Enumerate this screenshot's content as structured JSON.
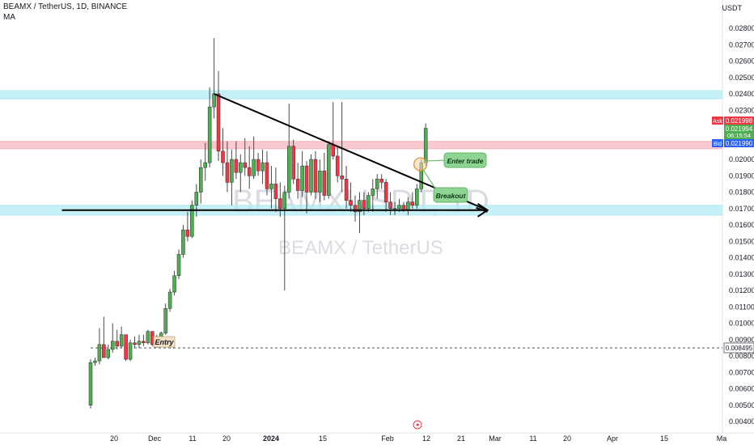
{
  "header": {
    "symbol_line": "BEAMX / TetherUS, 1D, BINANCE",
    "indicator": "MA",
    "currency": "USDT"
  },
  "watermark": {
    "big": "BEAMXUSDT, 1D",
    "small": "BEAMX / TetherUS"
  },
  "colors": {
    "up": "#4caf50",
    "down": "#f23645",
    "support_zone": "#b2ebf2",
    "resistance_zone": "#f5b7bd",
    "ask_badge": "#f23645",
    "last_badge": "#4caf50",
    "bid_badge": "#2962ff",
    "entry_badge": "#f2e1c9",
    "callout": "#8fd494"
  },
  "chart_data": {
    "type": "candlestick",
    "interval": "1D",
    "ylim": [
      0.0035,
      0.029
    ],
    "y_ticks": [
      "0.004000",
      "0.005000",
      "0.006000",
      "0.007000",
      "0.008000",
      "0.009000",
      "0.010000",
      "0.011000",
      "0.012000",
      "0.013000",
      "0.014000",
      "0.015000",
      "0.016000",
      "0.017000",
      "0.018000",
      "0.019000",
      "0.020000",
      "0.021000",
      "0.022000",
      "0.023000",
      "0.024000",
      "0.025000",
      "0.026000",
      "0.027000",
      "0.028000"
    ],
    "x_ticks": [
      "20",
      "Dec",
      "11",
      "20",
      "2024",
      "15",
      "Feb",
      "12",
      "21",
      "Mar",
      "11",
      "20",
      "Apr",
      "15",
      "Ma"
    ],
    "candles": [
      [
        0.005,
        0.0078,
        0.0048,
        0.0076
      ],
      [
        0.0076,
        0.0079,
        0.0074,
        0.0077
      ],
      [
        0.0077,
        0.0097,
        0.0075,
        0.0087
      ],
      [
        0.0087,
        0.0104,
        0.0079,
        0.0079
      ],
      [
        0.0079,
        0.0087,
        0.0078,
        0.0084
      ],
      [
        0.0084,
        0.01,
        0.0082,
        0.0089
      ],
      [
        0.0089,
        0.0096,
        0.0084,
        0.0086
      ],
      [
        0.0086,
        0.0098,
        0.0085,
        0.0093
      ],
      [
        0.0093,
        0.0093,
        0.0077,
        0.0078
      ],
      [
        0.0078,
        0.009,
        0.0077,
        0.0088
      ],
      [
        0.0088,
        0.0092,
        0.0085,
        0.0087
      ],
      [
        0.0087,
        0.0093,
        0.0085,
        0.0089
      ],
      [
        0.0089,
        0.0093,
        0.0086,
        0.0088
      ],
      [
        0.0088,
        0.0096,
        0.0087,
        0.0095
      ],
      [
        0.0095,
        0.0095,
        0.0086,
        0.0087
      ],
      [
        0.0087,
        0.0093,
        0.0085,
        0.0092
      ],
      [
        0.0092,
        0.0095,
        0.0088,
        0.0094
      ],
      [
        0.0094,
        0.0112,
        0.0093,
        0.0109
      ],
      [
        0.0109,
        0.0121,
        0.0107,
        0.0119
      ],
      [
        0.0119,
        0.0132,
        0.0117,
        0.0129
      ],
      [
        0.0129,
        0.0145,
        0.0127,
        0.0142
      ],
      [
        0.0142,
        0.016,
        0.014,
        0.0157
      ],
      [
        0.0157,
        0.0168,
        0.015,
        0.0153
      ],
      [
        0.0153,
        0.0175,
        0.0152,
        0.0172
      ],
      [
        0.0172,
        0.0185,
        0.0165,
        0.018
      ],
      [
        0.018,
        0.02,
        0.0173,
        0.0195
      ],
      [
        0.0195,
        0.021,
        0.0187,
        0.0198
      ],
      [
        0.0198,
        0.0244,
        0.0195,
        0.0232
      ],
      [
        0.0232,
        0.0274,
        0.0225,
        0.024
      ],
      [
        0.024,
        0.0254,
        0.0199,
        0.0205
      ],
      [
        0.0205,
        0.0219,
        0.019,
        0.0198
      ],
      [
        0.0198,
        0.0211,
        0.018,
        0.0186
      ],
      [
        0.0186,
        0.0206,
        0.0172,
        0.02
      ],
      [
        0.02,
        0.0211,
        0.0188,
        0.0192
      ],
      [
        0.0192,
        0.0203,
        0.018,
        0.0198
      ],
      [
        0.0198,
        0.0213,
        0.019,
        0.0195
      ],
      [
        0.0195,
        0.0208,
        0.0182,
        0.019
      ],
      [
        0.019,
        0.0214,
        0.0188,
        0.02
      ],
      [
        0.02,
        0.0204,
        0.019,
        0.0193
      ],
      [
        0.0193,
        0.0206,
        0.0185,
        0.0198
      ],
      [
        0.0198,
        0.0205,
        0.0178,
        0.0182
      ],
      [
        0.0182,
        0.0196,
        0.017,
        0.0185
      ],
      [
        0.0185,
        0.0195,
        0.0168,
        0.0176
      ],
      [
        0.0176,
        0.0186,
        0.0165,
        0.017
      ],
      [
        0.017,
        0.0184,
        0.012,
        0.018
      ],
      [
        0.018,
        0.0234,
        0.0176,
        0.0208
      ],
      [
        0.0208,
        0.0212,
        0.0185,
        0.0188
      ],
      [
        0.0188,
        0.0198,
        0.0176,
        0.0181
      ],
      [
        0.0181,
        0.0205,
        0.0177,
        0.0196
      ],
      [
        0.0196,
        0.0199,
        0.0167,
        0.018
      ],
      [
        0.018,
        0.0203,
        0.0178,
        0.02
      ],
      [
        0.02,
        0.0205,
        0.0176,
        0.018
      ],
      [
        0.018,
        0.02,
        0.0174,
        0.0193
      ],
      [
        0.0193,
        0.0204,
        0.0175,
        0.0178
      ],
      [
        0.0178,
        0.0211,
        0.0176,
        0.0209
      ],
      [
        0.0209,
        0.0235,
        0.02,
        0.0202
      ],
      [
        0.0202,
        0.0208,
        0.0186,
        0.019
      ],
      [
        0.019,
        0.0235,
        0.018,
        0.0188
      ],
      [
        0.0188,
        0.0196,
        0.017,
        0.0175
      ],
      [
        0.0175,
        0.0186,
        0.0168,
        0.0172
      ],
      [
        0.0172,
        0.0178,
        0.0162,
        0.0168
      ],
      [
        0.0168,
        0.018,
        0.0155,
        0.0175
      ],
      [
        0.0175,
        0.018,
        0.0166,
        0.017
      ],
      [
        0.017,
        0.018,
        0.0168,
        0.0178
      ],
      [
        0.0178,
        0.0188,
        0.0168,
        0.0182
      ],
      [
        0.0182,
        0.0191,
        0.0176,
        0.0188
      ],
      [
        0.0188,
        0.0191,
        0.0182,
        0.0186
      ],
      [
        0.0186,
        0.0188,
        0.0168,
        0.0174
      ],
      [
        0.0174,
        0.018,
        0.0166,
        0.017
      ],
      [
        0.017,
        0.0174,
        0.0166,
        0.017
      ],
      [
        0.017,
        0.0176,
        0.0168,
        0.0172
      ],
      [
        0.0172,
        0.0174,
        0.0168,
        0.0169
      ],
      [
        0.0169,
        0.0177,
        0.0166,
        0.0174
      ],
      [
        0.0174,
        0.018,
        0.017,
        0.0172
      ],
      [
        0.0172,
        0.0185,
        0.017,
        0.0182
      ],
      [
        0.0182,
        0.02,
        0.018,
        0.0198
      ],
      [
        0.0198,
        0.0222,
        0.0196,
        0.0219
      ]
    ],
    "zones": [
      {
        "name": "resistance-top",
        "from": 0.0237,
        "to": 0.0242,
        "color": "support_zone"
      },
      {
        "name": "resistance-mid",
        "from": 0.02065,
        "to": 0.0211,
        "color": "resistance_zone"
      },
      {
        "name": "support",
        "from": 0.0166,
        "to": 0.0172,
        "color": "support_zone"
      }
    ],
    "trendlines": [
      {
        "name": "descending-trendline",
        "from": {
          "i": 28,
          "y": 0.024
        },
        "to": {
          "i": 90,
          "y": 0.0169
        }
      },
      {
        "name": "horizontal-support-line",
        "from": {
          "i": -6.5,
          "y": 0.0169
        },
        "to": {
          "i": 90,
          "y": 0.0169
        }
      }
    ],
    "entry": {
      "label": "Entry",
      "price": "0.008495",
      "value": 0.008495
    },
    "annotations": [
      {
        "name": "enter-trade",
        "text": "Enter trade"
      },
      {
        "name": "breakout",
        "text": "Breakout"
      }
    ],
    "price_badges": {
      "ask_label": "Ask",
      "ask": "0.021998",
      "last": "0.021994",
      "countdown": "06:15:54",
      "bid_label": "Bid",
      "bid": "0.021990"
    }
  }
}
